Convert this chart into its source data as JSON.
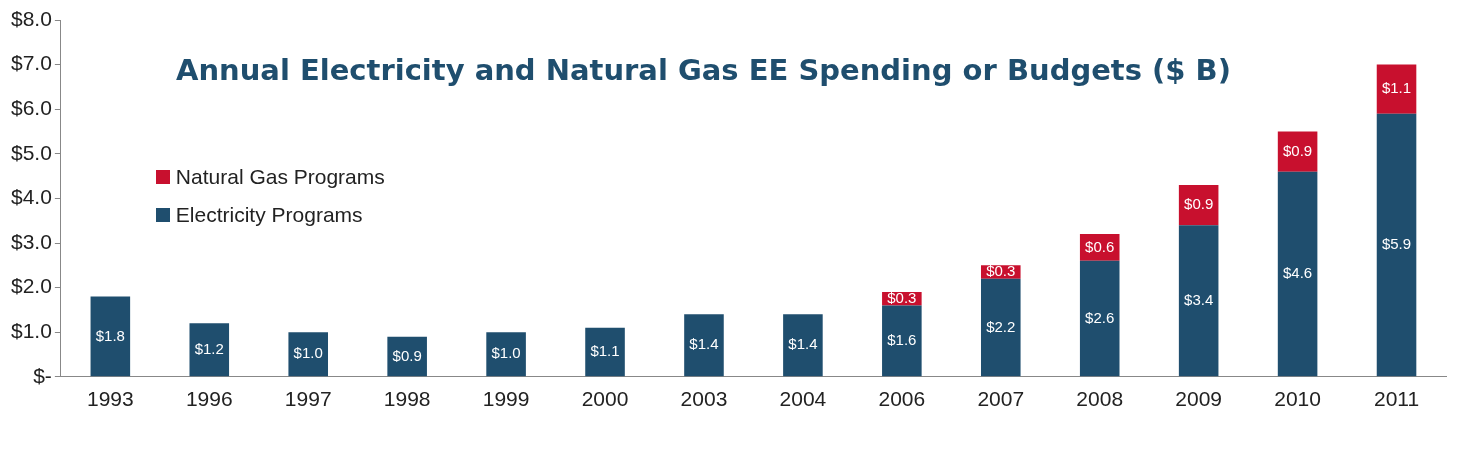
{
  "chart_data": {
    "type": "bar",
    "title": "Annual Electricity and Natural Gas EE Spending or Budgets ($ B)",
    "categories": [
      "1993",
      "1996",
      "1997",
      "1998",
      "1999",
      "2000",
      "2003",
      "2004",
      "2006",
      "2007",
      "2008",
      "2009",
      "2010",
      "2011"
    ],
    "stacked": true,
    "series": [
      {
        "name": "Electricity Programs",
        "color": "#1f4e6e",
        "values": [
          1.8,
          1.2,
          1.0,
          0.9,
          1.0,
          1.1,
          1.4,
          1.4,
          1.6,
          2.2,
          2.6,
          3.4,
          4.6,
          5.9
        ],
        "value_labels": [
          "$1.8",
          "$1.2",
          "$1.0",
          "$0.9",
          "$1.0",
          "$1.1",
          "$1.4",
          "$1.4",
          "$1.6",
          "$2.2",
          "$2.6",
          "$3.4",
          "$4.6",
          "$5.9"
        ]
      },
      {
        "name": "Natural Gas Programs",
        "color": "#c8102e",
        "values": [
          null,
          null,
          null,
          null,
          null,
          null,
          null,
          null,
          0.3,
          0.3,
          0.6,
          0.9,
          0.9,
          1.1
        ],
        "value_labels": [
          null,
          null,
          null,
          null,
          null,
          null,
          null,
          null,
          "$0.3",
          "$0.3",
          "$0.6",
          "$0.9",
          "$0.9",
          "$1.1"
        ]
      }
    ],
    "ylim": [
      0,
      8
    ],
    "yticks": [
      {
        "value": 0,
        "label": "$-"
      },
      {
        "value": 1,
        "label": "$1.0"
      },
      {
        "value": 2,
        "label": "$2.0"
      },
      {
        "value": 3,
        "label": "$3.0"
      },
      {
        "value": 4,
        "label": "$4.0"
      },
      {
        "value": 5,
        "label": "$5.0"
      },
      {
        "value": 6,
        "label": "$6.0"
      },
      {
        "value": 7,
        "label": "$7.0"
      },
      {
        "value": 8,
        "label": "$8.0"
      }
    ],
    "grid": false,
    "legend": "left"
  }
}
